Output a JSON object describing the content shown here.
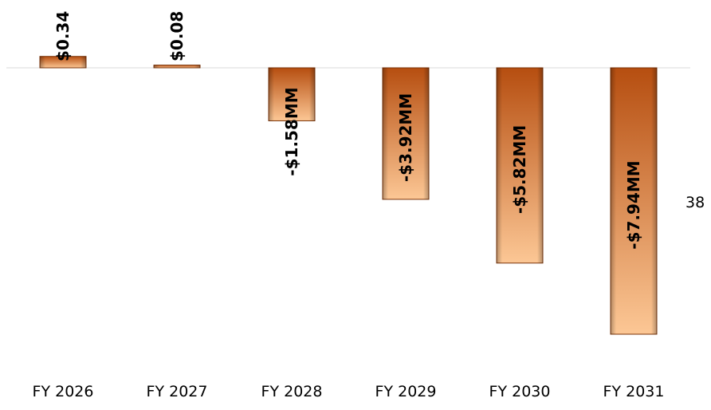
{
  "page_number": "38",
  "colors": {
    "bar_light": "#fcc795",
    "bar_dark": "#b64e10",
    "bar_border": "#7a3308",
    "zero_line": "#d9d9d9"
  },
  "chart_data": {
    "type": "bar",
    "categories": [
      "FY 2026",
      "FY 2027",
      "FY 2028",
      "FY 2029",
      "FY 2030",
      "FY 2031"
    ],
    "values": [
      0.34,
      0.08,
      -1.58,
      -3.92,
      -5.82,
      -7.94
    ],
    "data_labels": [
      "$0.34",
      "$0.08",
      "-$1.58MM",
      "-$3.92MM",
      "-$5.82MM",
      "-$7.94MM"
    ],
    "units": "MM",
    "title": "",
    "xlabel": "",
    "ylabel": "",
    "ylim": [
      -8.0,
      2.0
    ],
    "grid": false,
    "legend": "none"
  }
}
